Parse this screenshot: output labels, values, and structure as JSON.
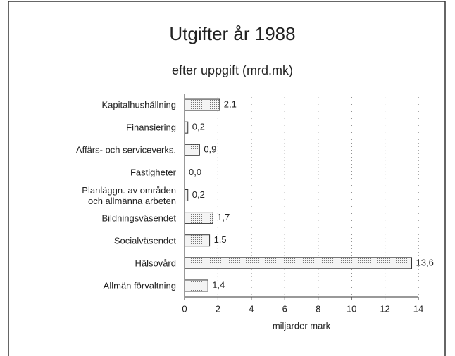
{
  "chart_data": {
    "type": "bar",
    "orientation": "horizontal",
    "title": "Utgifter år 1988",
    "subtitle": "efter uppgift (mrd.mk)",
    "categories": [
      "Kapitalhushållning",
      "Finansiering",
      "Affärs- och serviceverks.",
      "Fastigheter",
      "Planläggn. av områden\noch allmänna arbeten",
      "Bildningsväsendet",
      "Socialväsendet",
      "Hälsovård",
      "Allmän förvaltning"
    ],
    "values": [
      2.1,
      0.2,
      0.9,
      0.0,
      0.2,
      1.7,
      1.5,
      13.6,
      1.4
    ],
    "value_labels": [
      "2,1",
      "0,2",
      "0,9",
      "0,0",
      "0,2",
      "1,7",
      "1,5",
      "13,6",
      "1,4"
    ],
    "xlim": [
      0,
      14
    ],
    "xticks": [
      0,
      2,
      4,
      6,
      8,
      10,
      12,
      14
    ],
    "xlabel": "miljarder mark",
    "grid": true,
    "color": "#e8e8e8"
  }
}
